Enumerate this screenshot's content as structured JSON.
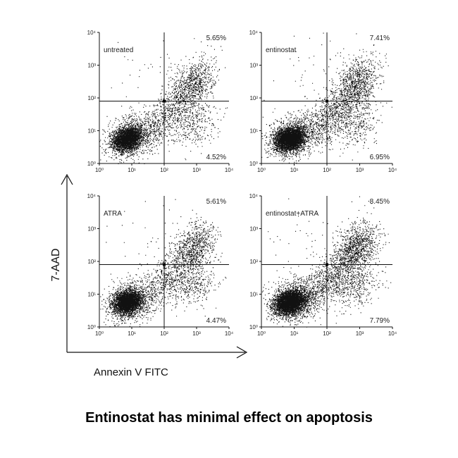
{
  "caption": "Entinostat has minimal effect on apoptosis",
  "chart_data": {
    "type": "scatter",
    "y_axis_label": "7-AAD",
    "x_axis_label": "Annexin V FITC",
    "x_scale": "log",
    "y_scale": "log",
    "xlim": [
      1,
      10000
    ],
    "ylim": [
      1,
      10000
    ],
    "x_ticks": [
      "10⁰",
      "10¹",
      "10²",
      "10³",
      "10⁴"
    ],
    "y_ticks": [
      "10⁰",
      "10¹",
      "10²",
      "10³",
      "10⁴"
    ],
    "gate": {
      "x": 100,
      "y": 80
    },
    "panels": [
      {
        "label": "untreated",
        "upper_right": "5.65%",
        "lower_right": "4.52%"
      },
      {
        "label": "entinostat",
        "upper_right": "7.41%",
        "lower_right": "6.95%"
      },
      {
        "label": "ATRA",
        "upper_right": "5.61%",
        "lower_right": "4.47%"
      },
      {
        "label": "entinostat+ATRA",
        "upper_right": "8.45%",
        "lower_right": "7.79%"
      }
    ]
  }
}
